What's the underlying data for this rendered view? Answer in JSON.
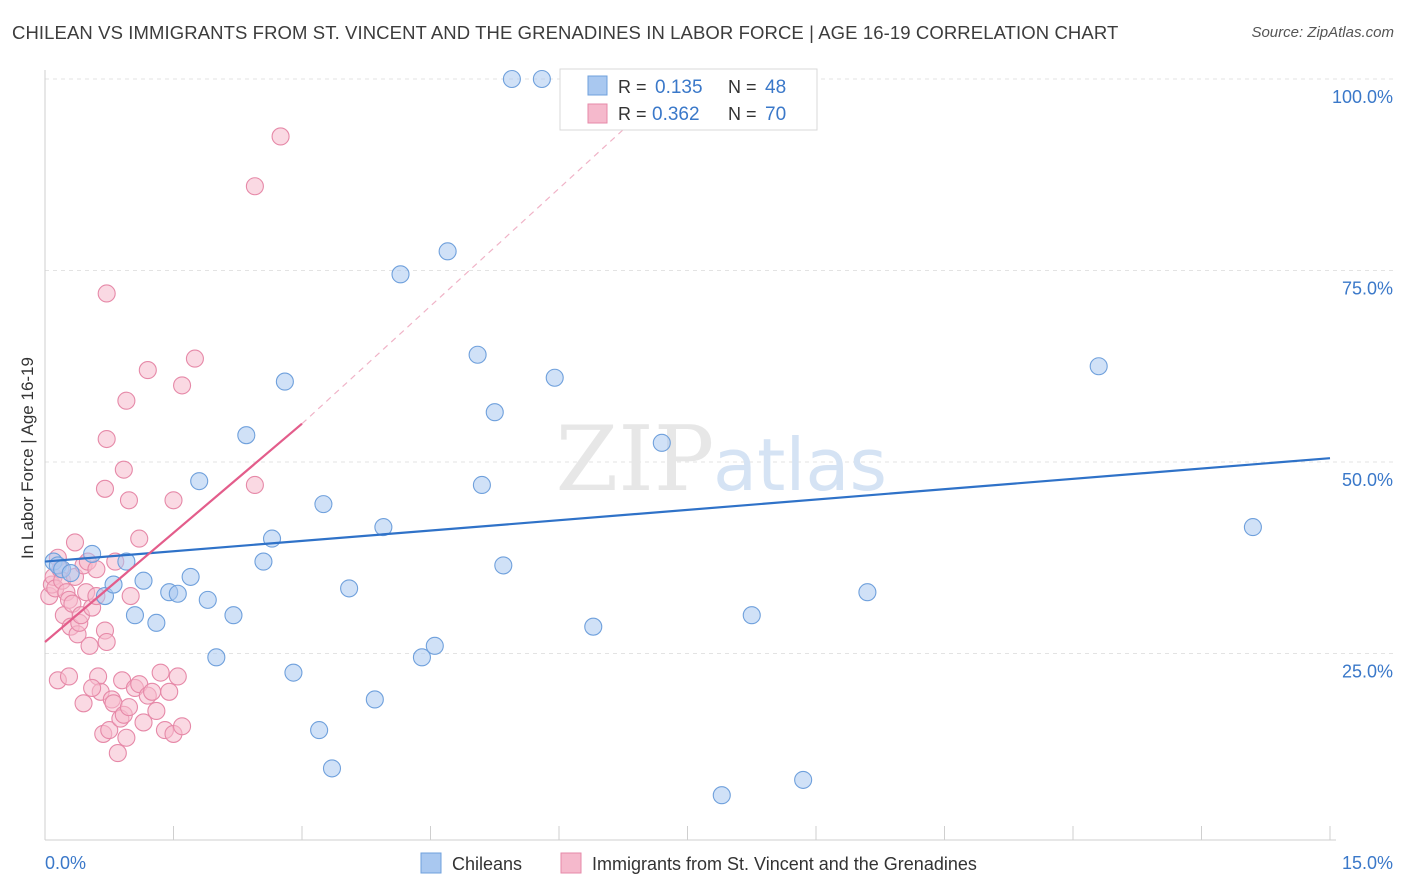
{
  "header": {
    "title": "CHILEAN VS IMMIGRANTS FROM ST. VINCENT AND THE GRENADINES IN LABOR FORCE | AGE 16-19 CORRELATION CHART",
    "source": "Source: ZipAtlas.com"
  },
  "watermark": {
    "zip": "ZIP",
    "atlas": "atlas"
  },
  "chart_data": {
    "type": "scatter",
    "title": "CHILEAN VS IMMIGRANTS FROM ST. VINCENT AND THE GRENADINES IN LABOR FORCE | AGE 16-19 CORRELATION CHART",
    "xlabel": "",
    "ylabel": "In Labor Force | Age 16-19",
    "xlim": [
      0,
      15
    ],
    "ylim": [
      0,
      102
    ],
    "x_tick_labels": {
      "min": "0.0%",
      "max": "15.0%"
    },
    "y_ticks": [
      {
        "value": 25,
        "label": "25.0%"
      },
      {
        "value": 50,
        "label": "50.0%"
      },
      {
        "value": 75,
        "label": "75.0%"
      },
      {
        "value": 100,
        "label": "100.0%"
      }
    ],
    "grid": true,
    "legend_position": "top-center",
    "series": [
      {
        "name": "Chileans",
        "color": "#a9c8f0",
        "edge": "#6fa0dc",
        "line_color": "#2f72c8",
        "R": "0.135",
        "N": "48",
        "trend": {
          "x0": 0,
          "y0": 37,
          "x1": 15,
          "y1": 50.5,
          "dashed_to": null
        },
        "points": [
          [
            0.1,
            37.0
          ],
          [
            0.15,
            36.5
          ],
          [
            0.2,
            36.0
          ],
          [
            0.3,
            35.5
          ],
          [
            0.55,
            38.0
          ],
          [
            0.7,
            32.5
          ],
          [
            0.95,
            37.0
          ],
          [
            0.8,
            34.0
          ],
          [
            1.15,
            34.5
          ],
          [
            1.05,
            30.0
          ],
          [
            1.3,
            29.0
          ],
          [
            1.45,
            33.0
          ],
          [
            1.55,
            32.8
          ],
          [
            1.7,
            35.0
          ],
          [
            1.8,
            47.5
          ],
          [
            1.9,
            32.0
          ],
          [
            2.0,
            24.5
          ],
          [
            2.2,
            30.0
          ],
          [
            2.35,
            53.5
          ],
          [
            2.55,
            37.0
          ],
          [
            2.65,
            40.0
          ],
          [
            2.8,
            60.5
          ],
          [
            2.9,
            22.5
          ],
          [
            3.2,
            15.0
          ],
          [
            3.25,
            44.5
          ],
          [
            3.35,
            10.0
          ],
          [
            3.55,
            33.5
          ],
          [
            3.85,
            19.0
          ],
          [
            3.95,
            41.5
          ],
          [
            4.15,
            74.5
          ],
          [
            4.4,
            24.5
          ],
          [
            4.55,
            26.0
          ],
          [
            4.7,
            77.5
          ],
          [
            5.05,
            64.0
          ],
          [
            5.1,
            47.0
          ],
          [
            5.25,
            56.5
          ],
          [
            5.35,
            36.5
          ],
          [
            5.45,
            100.0
          ],
          [
            5.8,
            100.0
          ],
          [
            5.95,
            61.0
          ],
          [
            6.4,
            28.5
          ],
          [
            7.2,
            52.5
          ],
          [
            7.9,
            6.5
          ],
          [
            8.25,
            30.0
          ],
          [
            8.85,
            8.5
          ],
          [
            9.6,
            33.0
          ],
          [
            12.3,
            62.5
          ],
          [
            14.1,
            41.5
          ]
        ]
      },
      {
        "name": "Immigrants from St. Vincent and the Grenadines",
        "color": "#f5b9cc",
        "edge": "#e689a8",
        "line_color": "#e35d8b",
        "R": "0.362",
        "N": "70",
        "trend": {
          "x0": 0,
          "y0": 26.5,
          "x1": 3.0,
          "y1": 55.0,
          "dashed_to": [
            7.2,
            98
          ]
        },
        "points": [
          [
            0.05,
            32.5
          ],
          [
            0.08,
            34.0
          ],
          [
            0.1,
            35.0
          ],
          [
            0.12,
            33.5
          ],
          [
            0.15,
            37.5
          ],
          [
            0.18,
            36.0
          ],
          [
            0.2,
            34.5
          ],
          [
            0.22,
            30.0
          ],
          [
            0.25,
            33.0
          ],
          [
            0.28,
            32.0
          ],
          [
            0.3,
            28.5
          ],
          [
            0.32,
            31.5
          ],
          [
            0.35,
            35.0
          ],
          [
            0.38,
            27.5
          ],
          [
            0.4,
            29.0
          ],
          [
            0.42,
            30.0
          ],
          [
            0.45,
            36.5
          ],
          [
            0.48,
            33.0
          ],
          [
            0.5,
            37.0
          ],
          [
            0.52,
            26.0
          ],
          [
            0.55,
            31.0
          ],
          [
            0.6,
            36.0
          ],
          [
            0.62,
            22.0
          ],
          [
            0.65,
            20.0
          ],
          [
            0.68,
            14.5
          ],
          [
            0.7,
            28.0
          ],
          [
            0.72,
            26.5
          ],
          [
            0.75,
            15.0
          ],
          [
            0.78,
            19.0
          ],
          [
            0.8,
            18.5
          ],
          [
            0.82,
            37.0
          ],
          [
            0.85,
            12.0
          ],
          [
            0.88,
            16.5
          ],
          [
            0.9,
            21.5
          ],
          [
            0.92,
            17.0
          ],
          [
            0.95,
            14.0
          ],
          [
            0.98,
            18.0
          ],
          [
            1.0,
            32.5
          ],
          [
            1.05,
            20.5
          ],
          [
            1.1,
            21.0
          ],
          [
            1.15,
            16.0
          ],
          [
            1.2,
            19.5
          ],
          [
            1.25,
            20.0
          ],
          [
            1.3,
            17.5
          ],
          [
            1.35,
            22.5
          ],
          [
            1.4,
            15.0
          ],
          [
            1.45,
            20.0
          ],
          [
            1.5,
            14.5
          ],
          [
            1.55,
            22.0
          ],
          [
            1.6,
            15.5
          ],
          [
            0.15,
            21.5
          ],
          [
            0.28,
            22.0
          ],
          [
            0.45,
            18.5
          ],
          [
            0.55,
            20.5
          ],
          [
            0.6,
            32.5
          ],
          [
            0.72,
            72.0
          ],
          [
            0.7,
            46.5
          ],
          [
            0.72,
            53.0
          ],
          [
            0.92,
            49.0
          ],
          [
            0.95,
            58.0
          ],
          [
            0.98,
            45.0
          ],
          [
            1.1,
            40.0
          ],
          [
            1.2,
            62.0
          ],
          [
            1.5,
            45.0
          ],
          [
            1.6,
            60.0
          ],
          [
            1.75,
            63.5
          ],
          [
            2.45,
            47.0
          ],
          [
            2.45,
            86.0
          ],
          [
            2.75,
            92.5
          ],
          [
            0.35,
            39.5
          ]
        ]
      }
    ]
  }
}
